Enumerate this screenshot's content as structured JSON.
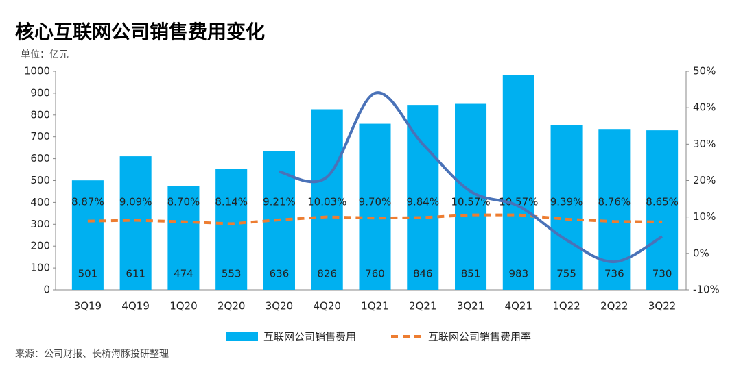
{
  "chart_data": {
    "type": "bar-line",
    "title": "核心互联网公司销售费用变化",
    "unit_label": "单位：亿元",
    "source": "来源：公司财报、长桥海豚投研整理",
    "categories": [
      "3Q19",
      "4Q19",
      "1Q20",
      "2Q20",
      "3Q20",
      "4Q20",
      "1Q21",
      "2Q21",
      "3Q21",
      "4Q21",
      "1Q22",
      "2Q22",
      "3Q22"
    ],
    "series": [
      {
        "name": "互联网公司销售费用",
        "type": "bar",
        "color": "#00b0f0",
        "values": [
          501,
          611,
          474,
          553,
          636,
          826,
          760,
          846,
          851,
          983,
          755,
          736,
          730
        ]
      },
      {
        "name": "互联网公司销售费用率",
        "type": "line",
        "axis": "y2",
        "color": "#ed7d31",
        "dashed": true,
        "values": [
          8.87,
          9.09,
          8.7,
          8.14,
          9.21,
          10.03,
          9.7,
          9.84,
          10.57,
          10.57,
          9.39,
          8.76,
          8.65
        ],
        "value_labels": [
          "8.87%",
          "9.09%",
          "8.70%",
          "8.14%",
          "9.21%",
          "10.03%",
          "9.70%",
          "9.84%",
          "10.57%",
          "10.57%",
          "9.39%",
          "8.76%",
          "8.65%"
        ]
      },
      {
        "type": "smooth-line",
        "axis": "y2",
        "color": "#4a72b8",
        "values": [
          null,
          null,
          null,
          null,
          22.4,
          21,
          44,
          30,
          17,
          13,
          3.7,
          -2.3,
          4.6
        ]
      }
    ],
    "ylim": [
      0,
      1000
    ],
    "yticks": [
      0,
      100,
      200,
      300,
      400,
      500,
      600,
      700,
      800,
      900,
      1000
    ],
    "y2lim": [
      -10,
      50
    ],
    "y2ticks": [
      {
        "value": -10,
        "label": "-10%"
      },
      {
        "value": 0,
        "label": "0%"
      },
      {
        "value": 10,
        "label": "10%"
      },
      {
        "value": 20,
        "label": "20%"
      },
      {
        "value": 30,
        "label": "30%"
      },
      {
        "value": 40,
        "label": "40%"
      },
      {
        "value": 50,
        "label": "50%"
      }
    ],
    "grid": false
  }
}
